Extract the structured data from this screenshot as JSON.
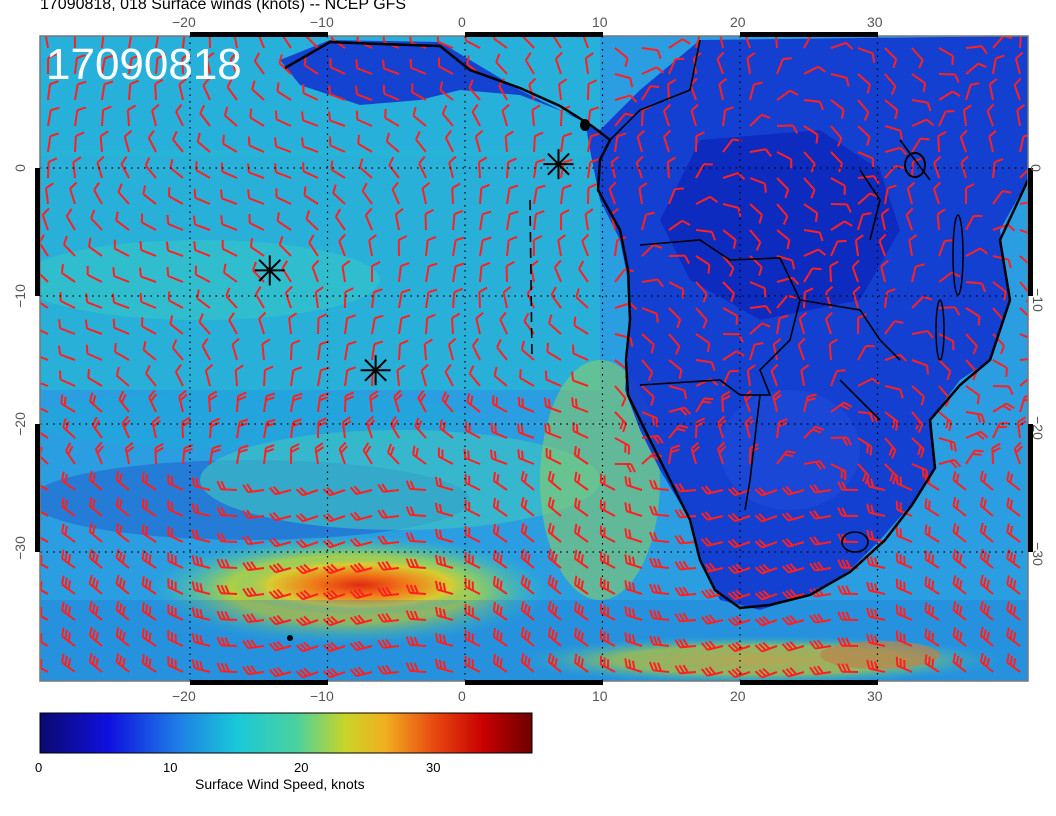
{
  "title": "17090818, 018 Surface winds (knots) -- NCEP GFS",
  "date_stamp": "17090818",
  "map": {
    "lon_range": [
      -30,
      41
    ],
    "lat_range": [
      -40,
      9
    ],
    "lon_ticks_top": [
      "−20",
      "−10",
      "0",
      "10",
      "20",
      "30"
    ],
    "lon_ticks_bottom": [
      "−20",
      "−10",
      "0",
      "10",
      "20",
      "30"
    ],
    "lat_ticks_left": [
      "0",
      "−10",
      "−20",
      "−30"
    ],
    "lat_ticks_right": [
      "0",
      "−10",
      "−20",
      "−30"
    ],
    "barb_color": "#ff2020",
    "coast_color": "#000000",
    "markers": [
      {
        "lon": -14.2,
        "lat": -8.0
      },
      {
        "lon": -6.5,
        "lat": -15.8
      },
      {
        "lon": 6.8,
        "lat": 0.3
      }
    ]
  },
  "colorbar": {
    "title": "Surface Wind Speed, knots",
    "ticks": [
      "0",
      "10",
      "20",
      "30"
    ],
    "range": [
      0,
      37
    ]
  }
}
